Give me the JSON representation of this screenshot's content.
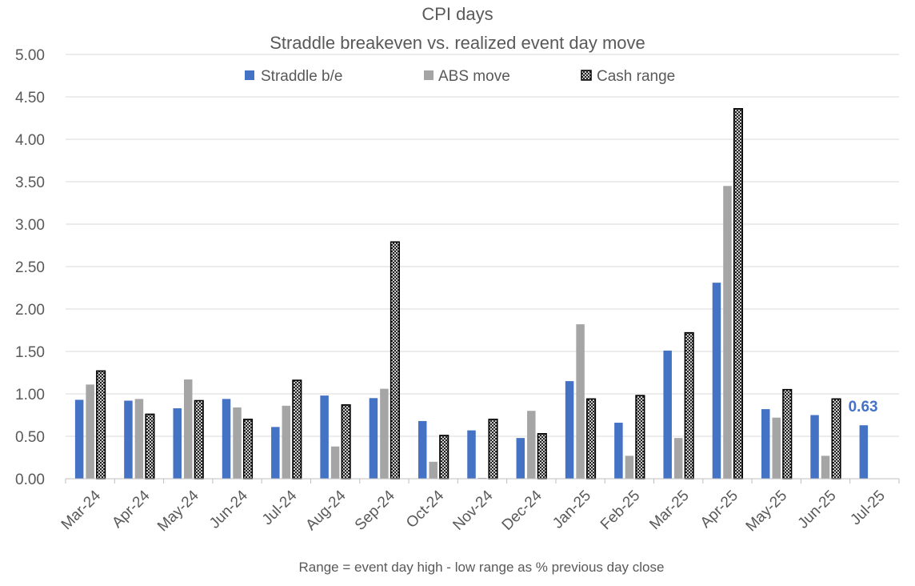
{
  "colors": {
    "straddle": "#4472C4",
    "abs": "#A5A5A5",
    "cash_fill": "#ffffff",
    "cash_hatch": "#000000",
    "grid": "#D9D9D9",
    "text": "#595959",
    "highlight_label": "#4472C4"
  },
  "chart_data": {
    "type": "bar",
    "title": "CPI days",
    "subtitle": "Straddle breakeven vs. realized event day move",
    "xlabel": "Range = event day high - low range as % previous day close",
    "ylabel": "",
    "ylim": [
      0,
      5
    ],
    "ytick_step": 0.5,
    "ytick_labels": [
      "0.00",
      "0.50",
      "1.00",
      "1.50",
      "2.00",
      "2.50",
      "3.00",
      "3.50",
      "4.00",
      "4.50",
      "5.00"
    ],
    "grid": true,
    "legend_position": "top-center",
    "categories": [
      "Mar-24",
      "Apr-24",
      "May-24",
      "Jun-24",
      "Jul-24",
      "Aug-24",
      "Sep-24",
      "Oct-24",
      "Nov-24",
      "Dec-24",
      "Jan-25",
      "Feb-25",
      "Mar-25",
      "Apr-25",
      "May-25",
      "Jun-25",
      "Jul-25"
    ],
    "series": [
      {
        "name": "Straddle b/e",
        "style": "solid-blue",
        "values": [
          0.93,
          0.92,
          0.83,
          0.94,
          0.61,
          0.98,
          0.95,
          0.68,
          0.57,
          0.48,
          1.15,
          0.66,
          1.51,
          2.31,
          0.82,
          0.75,
          0.63
        ]
      },
      {
        "name": "ABS move",
        "style": "solid-gray",
        "values": [
          1.11,
          0.94,
          1.17,
          0.84,
          0.86,
          0.38,
          1.06,
          0.2,
          0.01,
          0.8,
          1.82,
          0.27,
          0.48,
          3.45,
          0.72,
          0.27,
          null
        ]
      },
      {
        "name": "Cash range",
        "style": "hatched",
        "values": [
          1.27,
          0.76,
          0.92,
          0.7,
          1.16,
          0.87,
          2.79,
          0.51,
          0.7,
          0.53,
          0.94,
          0.98,
          1.72,
          4.36,
          1.05,
          0.94,
          null
        ]
      }
    ],
    "annotations": [
      {
        "text": "0.63",
        "category": "Jul-25",
        "series": "Straddle b/e",
        "value": 0.63
      }
    ]
  }
}
